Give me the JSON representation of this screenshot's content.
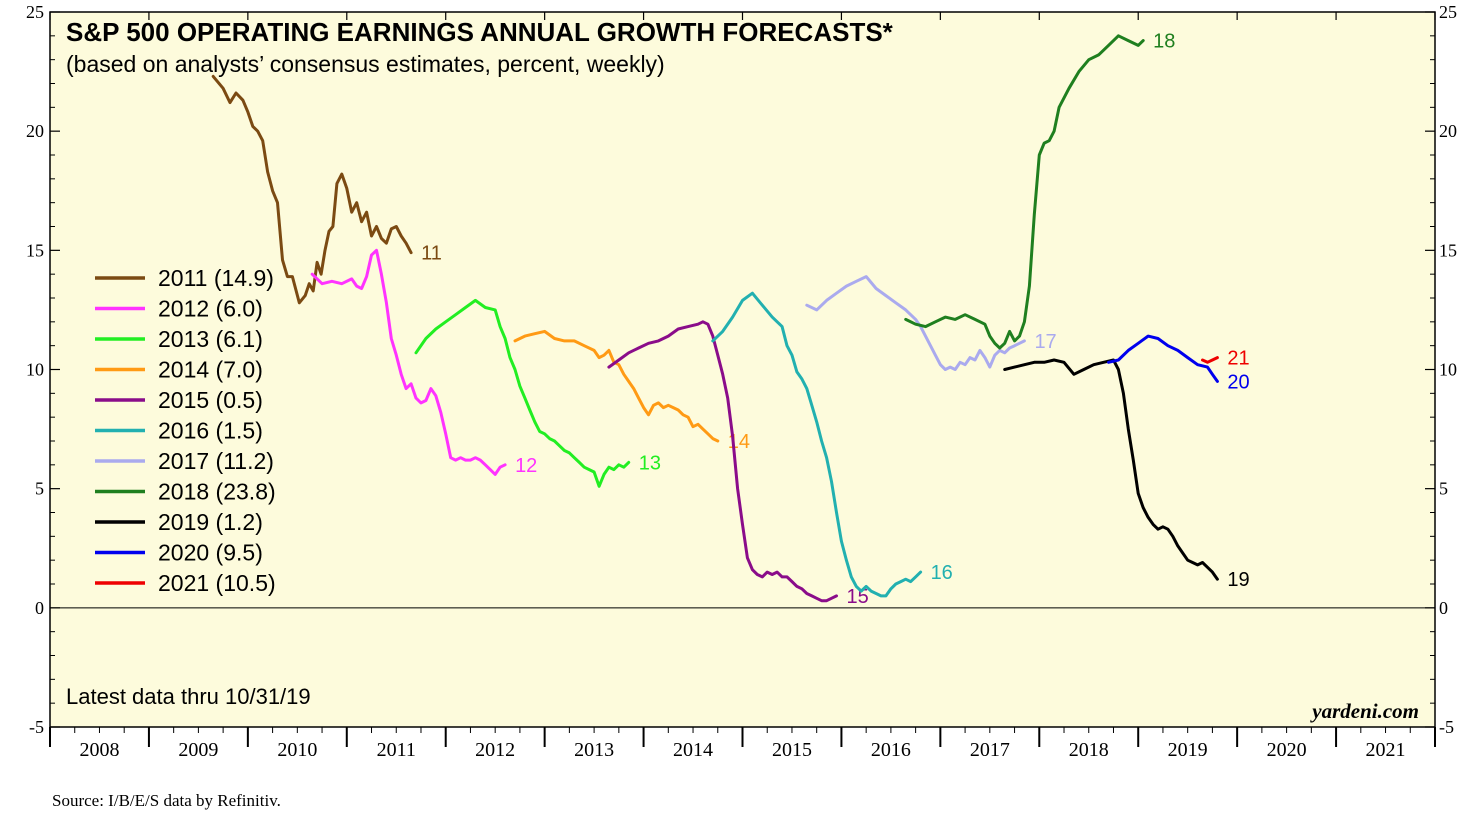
{
  "chart_data": {
    "type": "line",
    "title": "S&P 500 OPERATING EARNINGS ANNUAL GROWTH FORECASTS*",
    "subtitle": "(based on analysts’ consensus estimates, percent, weekly)",
    "note": "Latest data thru  10/31/19",
    "watermark": "yardeni.com",
    "source": "Source: I/B/E/S data by Refinitiv.",
    "x_range": [
      2008,
      2022
    ],
    "x_tick_labels": [
      "2008",
      "2009",
      "2010",
      "2011",
      "2012",
      "2013",
      "2014",
      "2015",
      "2016",
      "2017",
      "2018",
      "2019",
      "2020",
      "2021"
    ],
    "y_range": [
      -5,
      25
    ],
    "y_tick_labels": [
      "-5",
      "0",
      "5",
      "10",
      "15",
      "20",
      "25"
    ],
    "y_ticks": [
      -5,
      0,
      5,
      10,
      15,
      20,
      25
    ],
    "zero_line": true,
    "legend_position": "left",
    "background_color": "#fdfbdc",
    "series": [
      {
        "name": "2011 (14.9)",
        "end_label": "11",
        "color": "#7b4a12",
        "x": [
          2009.65,
          2009.75,
          2009.82,
          2009.88,
          2009.95,
          2010.0,
          2010.05,
          2010.1,
          2010.15,
          2010.2,
          2010.25,
          2010.3,
          2010.35,
          2010.4,
          2010.45,
          2010.52,
          2010.58,
          2010.62,
          2010.66,
          2010.7,
          2010.74,
          2010.78,
          2010.82,
          2010.86,
          2010.9,
          2010.95,
          2011.0,
          2011.05,
          2011.1,
          2011.15,
          2011.2,
          2011.25,
          2011.3,
          2011.35,
          2011.4,
          2011.45,
          2011.5,
          2011.55,
          2011.6,
          2011.65
        ],
        "y": [
          22.3,
          21.8,
          21.2,
          21.6,
          21.3,
          20.8,
          20.2,
          20.0,
          19.6,
          18.3,
          17.5,
          17.0,
          14.6,
          13.9,
          13.9,
          12.8,
          13.1,
          13.6,
          13.3,
          14.5,
          14.0,
          15.0,
          15.8,
          16.0,
          17.8,
          18.2,
          17.6,
          16.6,
          17.0,
          16.2,
          16.6,
          15.6,
          16.0,
          15.5,
          15.3,
          15.9,
          16.0,
          15.6,
          15.3,
          14.9
        ]
      },
      {
        "name": "2012 (6.0)",
        "end_label": "12",
        "color": "#ff33ff",
        "x": [
          2010.65,
          2010.75,
          2010.85,
          2010.95,
          2011.05,
          2011.1,
          2011.15,
          2011.2,
          2011.25,
          2011.3,
          2011.35,
          2011.4,
          2011.45,
          2011.5,
          2011.55,
          2011.6,
          2011.65,
          2011.7,
          2011.75,
          2011.8,
          2011.85,
          2011.9,
          2011.95,
          2012.0,
          2012.05,
          2012.1,
          2012.15,
          2012.2,
          2012.25,
          2012.3,
          2012.35,
          2012.4,
          2012.45,
          2012.5,
          2012.55,
          2012.6
        ],
        "y": [
          14.0,
          13.6,
          13.7,
          13.6,
          13.8,
          13.5,
          13.4,
          13.9,
          14.8,
          15.0,
          14.0,
          12.8,
          11.3,
          10.6,
          9.8,
          9.2,
          9.4,
          8.8,
          8.6,
          8.7,
          9.2,
          8.9,
          8.2,
          7.3,
          6.3,
          6.2,
          6.3,
          6.2,
          6.2,
          6.3,
          6.2,
          6.0,
          5.8,
          5.6,
          5.9,
          6.0
        ]
      },
      {
        "name": "2013 (6.1)",
        "end_label": "13",
        "color": "#22ee22",
        "x": [
          2011.7,
          2011.8,
          2011.9,
          2012.0,
          2012.1,
          2012.2,
          2012.3,
          2012.4,
          2012.5,
          2012.55,
          2012.6,
          2012.65,
          2012.7,
          2012.75,
          2012.8,
          2012.85,
          2012.9,
          2012.95,
          2013.0,
          2013.05,
          2013.1,
          2013.15,
          2013.2,
          2013.25,
          2013.3,
          2013.35,
          2013.4,
          2013.45,
          2013.5,
          2013.55,
          2013.6,
          2013.65,
          2013.7,
          2013.75,
          2013.8,
          2013.85
        ],
        "y": [
          10.7,
          11.3,
          11.7,
          12.0,
          12.3,
          12.6,
          12.9,
          12.6,
          12.5,
          11.8,
          11.3,
          10.5,
          10.0,
          9.3,
          8.8,
          8.3,
          7.8,
          7.4,
          7.3,
          7.1,
          7.0,
          6.8,
          6.6,
          6.5,
          6.3,
          6.1,
          5.9,
          5.8,
          5.7,
          5.1,
          5.6,
          5.9,
          5.8,
          6.0,
          5.9,
          6.1
        ]
      },
      {
        "name": "2014 (7.0)",
        "end_label": "14",
        "color": "#ff9a14",
        "x": [
          2012.7,
          2012.8,
          2012.9,
          2013.0,
          2013.1,
          2013.2,
          2013.3,
          2013.4,
          2013.5,
          2013.55,
          2013.6,
          2013.65,
          2013.7,
          2013.75,
          2013.8,
          2013.85,
          2013.9,
          2013.95,
          2014.0,
          2014.05,
          2014.1,
          2014.15,
          2014.2,
          2014.25,
          2014.3,
          2014.35,
          2014.4,
          2014.45,
          2014.5,
          2014.55,
          2014.6,
          2014.65,
          2014.7,
          2014.75
        ],
        "y": [
          11.2,
          11.4,
          11.5,
          11.6,
          11.3,
          11.2,
          11.2,
          11.0,
          10.8,
          10.5,
          10.6,
          10.8,
          10.3,
          10.2,
          9.8,
          9.5,
          9.2,
          8.8,
          8.4,
          8.1,
          8.5,
          8.6,
          8.4,
          8.5,
          8.4,
          8.3,
          8.1,
          8.0,
          7.6,
          7.7,
          7.5,
          7.3,
          7.1,
          7.0
        ]
      },
      {
        "name": "2015 (0.5)",
        "end_label": "15",
        "color": "#8a0c8a",
        "x": [
          2013.65,
          2013.75,
          2013.85,
          2013.95,
          2014.05,
          2014.15,
          2014.25,
          2014.35,
          2014.45,
          2014.55,
          2014.6,
          2014.65,
          2014.7,
          2014.75,
          2014.8,
          2014.85,
          2014.9,
          2014.95,
          2015.0,
          2015.05,
          2015.1,
          2015.15,
          2015.2,
          2015.25,
          2015.3,
          2015.35,
          2015.4,
          2015.45,
          2015.5,
          2015.55,
          2015.6,
          2015.65,
          2015.7,
          2015.75,
          2015.8,
          2015.85,
          2015.9,
          2015.95
        ],
        "y": [
          10.1,
          10.4,
          10.7,
          10.9,
          11.1,
          11.2,
          11.4,
          11.7,
          11.8,
          11.9,
          12.0,
          11.9,
          11.4,
          10.6,
          9.8,
          8.8,
          7.2,
          5.0,
          3.5,
          2.1,
          1.6,
          1.4,
          1.3,
          1.5,
          1.4,
          1.5,
          1.3,
          1.3,
          1.1,
          0.9,
          0.8,
          0.6,
          0.5,
          0.4,
          0.3,
          0.3,
          0.4,
          0.5
        ]
      },
      {
        "name": "2016 (1.5)",
        "end_label": "16",
        "color": "#22b0b0",
        "x": [
          2014.7,
          2014.8,
          2014.9,
          2015.0,
          2015.1,
          2015.2,
          2015.3,
          2015.4,
          2015.45,
          2015.5,
          2015.55,
          2015.6,
          2015.65,
          2015.7,
          2015.75,
          2015.8,
          2015.85,
          2015.9,
          2015.95,
          2016.0,
          2016.05,
          2016.1,
          2016.15,
          2016.2,
          2016.25,
          2016.3,
          2016.35,
          2016.4,
          2016.45,
          2016.5,
          2016.55,
          2016.6,
          2016.65,
          2016.7,
          2016.75,
          2016.8
        ],
        "y": [
          11.2,
          11.6,
          12.2,
          12.9,
          13.2,
          12.7,
          12.2,
          11.8,
          11.0,
          10.6,
          9.9,
          9.6,
          9.2,
          8.5,
          7.8,
          7.0,
          6.3,
          5.3,
          4.0,
          2.8,
          2.0,
          1.3,
          0.9,
          0.7,
          0.9,
          0.7,
          0.6,
          0.5,
          0.5,
          0.8,
          1.0,
          1.1,
          1.2,
          1.1,
          1.3,
          1.5
        ]
      },
      {
        "name": "2017 (11.2)",
        "end_label": "17",
        "color": "#aaaaee",
        "x": [
          2015.65,
          2015.75,
          2015.85,
          2015.95,
          2016.05,
          2016.15,
          2016.25,
          2016.35,
          2016.45,
          2016.55,
          2016.65,
          2016.75,
          2016.8,
          2016.85,
          2016.9,
          2016.95,
          2017.0,
          2017.05,
          2017.1,
          2017.15,
          2017.2,
          2017.25,
          2017.3,
          2017.35,
          2017.4,
          2017.45,
          2017.5,
          2017.55,
          2017.6,
          2017.65,
          2017.7,
          2017.75,
          2017.8,
          2017.85
        ],
        "y": [
          12.7,
          12.5,
          12.9,
          13.2,
          13.5,
          13.7,
          13.9,
          13.4,
          13.1,
          12.8,
          12.5,
          12.1,
          11.8,
          11.4,
          11.0,
          10.6,
          10.2,
          10.0,
          10.1,
          10.0,
          10.3,
          10.2,
          10.5,
          10.4,
          10.8,
          10.5,
          10.1,
          10.6,
          10.8,
          10.7,
          10.9,
          11.0,
          11.1,
          11.2
        ]
      },
      {
        "name": "2018 (23.8)",
        "end_label": "18",
        "color": "#1f7f1f",
        "x": [
          2016.65,
          2016.75,
          2016.85,
          2016.95,
          2017.05,
          2017.15,
          2017.25,
          2017.35,
          2017.45,
          2017.5,
          2017.55,
          2017.6,
          2017.65,
          2017.7,
          2017.75,
          2017.8,
          2017.85,
          2017.9,
          2017.95,
          2018.0,
          2018.05,
          2018.1,
          2018.15,
          2018.2,
          2018.3,
          2018.4,
          2018.5,
          2018.6,
          2018.7,
          2018.8,
          2018.9,
          2019.0,
          2019.05
        ],
        "y": [
          12.1,
          11.9,
          11.8,
          12.0,
          12.2,
          12.1,
          12.3,
          12.1,
          11.9,
          11.4,
          11.1,
          10.9,
          11.1,
          11.6,
          11.2,
          11.4,
          12.0,
          13.5,
          16.5,
          19.0,
          19.5,
          19.6,
          20.0,
          21.0,
          21.8,
          22.5,
          23.0,
          23.2,
          23.6,
          24.0,
          23.8,
          23.6,
          23.8
        ]
      },
      {
        "name": "2019 (1.2)",
        "end_label": "19",
        "color": "#000000",
        "x": [
          2017.65,
          2017.75,
          2017.85,
          2017.95,
          2018.05,
          2018.15,
          2018.25,
          2018.35,
          2018.45,
          2018.55,
          2018.65,
          2018.75,
          2018.8,
          2018.85,
          2018.9,
          2018.95,
          2019.0,
          2019.05,
          2019.1,
          2019.15,
          2019.2,
          2019.25,
          2019.3,
          2019.35,
          2019.4,
          2019.45,
          2019.5,
          2019.55,
          2019.6,
          2019.65,
          2019.7,
          2019.75,
          2019.8
        ],
        "y": [
          10.0,
          10.1,
          10.2,
          10.3,
          10.3,
          10.4,
          10.3,
          9.8,
          10.0,
          10.2,
          10.3,
          10.4,
          10.0,
          9.0,
          7.5,
          6.2,
          4.8,
          4.2,
          3.8,
          3.5,
          3.3,
          3.4,
          3.3,
          3.0,
          2.6,
          2.3,
          2.0,
          1.9,
          1.8,
          1.9,
          1.7,
          1.5,
          1.2
        ]
      },
      {
        "name": "2020 (9.5)",
        "end_label": "20",
        "color": "#0000ee",
        "x": [
          2018.7,
          2018.8,
          2018.9,
          2019.0,
          2019.1,
          2019.2,
          2019.3,
          2019.4,
          2019.5,
          2019.6,
          2019.7,
          2019.75,
          2019.8
        ],
        "y": [
          10.3,
          10.4,
          10.8,
          11.1,
          11.4,
          11.3,
          11.0,
          10.8,
          10.5,
          10.2,
          10.1,
          9.8,
          9.5
        ]
      },
      {
        "name": "2021 (10.5)",
        "end_label": "21",
        "color": "#ee0000",
        "x": [
          2019.65,
          2019.7,
          2019.75,
          2019.8
        ],
        "y": [
          10.4,
          10.3,
          10.4,
          10.5
        ]
      }
    ]
  }
}
